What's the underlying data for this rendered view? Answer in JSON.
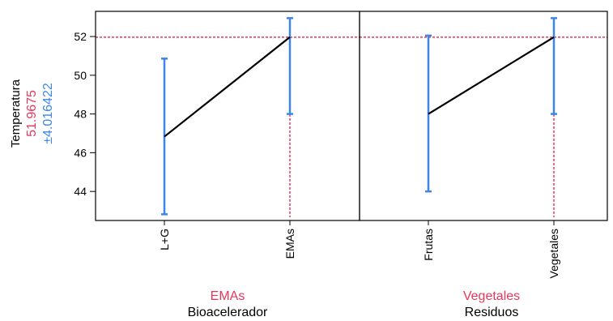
{
  "ylabel": {
    "text": "Temperatura",
    "current_value": "51.9675",
    "ci": "±4.016422"
  },
  "colors": {
    "value": "#e8375a",
    "ci": "#3d86e6",
    "line": "#000000",
    "reference": "#e8375a"
  },
  "factors": [
    {
      "name": "Bioacelerador",
      "current_level": "EMAs"
    },
    {
      "name": "Residuos",
      "current_level": "Vegetales"
    }
  ],
  "chart_data": {
    "type": "line",
    "ylabel": "Temperatura",
    "ylim": [
      42.5,
      53.3
    ],
    "yticks": [
      44,
      46,
      48,
      50,
      52
    ],
    "reference_y": 51.9675,
    "panels": [
      {
        "factor": "Bioacelerador",
        "categories": [
          "L+G",
          "EMAs"
        ],
        "values": [
          46.83,
          51.97
        ],
        "ci_low": [
          42.82,
          48.0
        ],
        "ci_high": [
          50.86,
          52.95
        ],
        "selected": "EMAs"
      },
      {
        "factor": "Residuos",
        "categories": [
          "Frutas",
          "Vegetales"
        ],
        "values": [
          48.0,
          51.97
        ],
        "ci_low": [
          44.0,
          48.0
        ],
        "ci_high": [
          52.05,
          52.95
        ],
        "selected": "Vegetales"
      }
    ]
  }
}
